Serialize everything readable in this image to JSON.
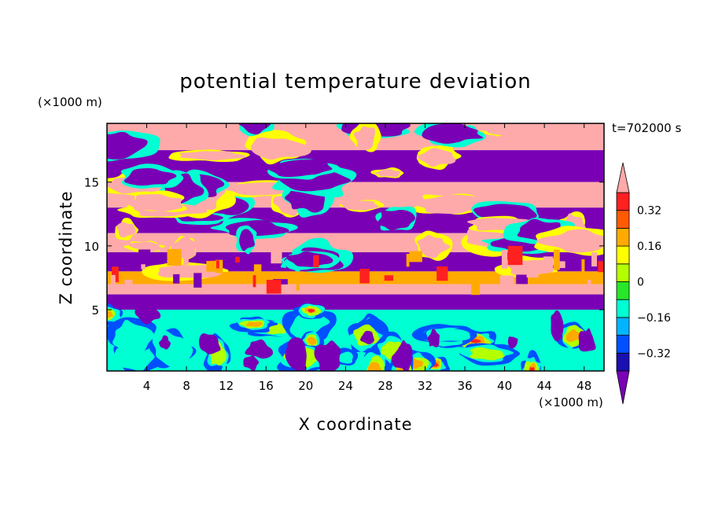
{
  "chart_data": {
    "type": "heatmap",
    "title": "potential temperature deviation",
    "xlabel": "X coordinate",
    "ylabel": "Z coordinate",
    "x_unit": "(×1000 m)",
    "y_unit": "(×1000 m)",
    "time_label": "t=702000 s",
    "xlim": [
      0,
      50
    ],
    "ylim": [
      0.2,
      19.6
    ],
    "x_ticks": [
      "4",
      "8",
      "12",
      "16",
      "20",
      "24",
      "28",
      "32",
      "36",
      "40",
      "44",
      "48"
    ],
    "y_ticks": [
      "5",
      "10",
      "15"
    ],
    "x_tick_values": [
      4,
      8,
      12,
      16,
      20,
      24,
      28,
      32,
      36,
      40,
      44,
      48
    ],
    "y_tick_values": [
      5,
      10,
      15
    ],
    "colorbar": {
      "levels": [
        -0.48,
        -0.4,
        -0.32,
        -0.24,
        -0.16,
        -0.08,
        0,
        0.08,
        0.16,
        0.24,
        0.32,
        0.4
      ],
      "colors": [
        "#7a00b5",
        "#1a0fb0",
        "#0050ff",
        "#00b4ff",
        "#00ffd2",
        "#28e628",
        "#b4ff00",
        "#ffff00",
        "#ffaa00",
        "#ff5a00",
        "#ff2020",
        "#ffaaaa"
      ],
      "tick_labels": [
        "0.32",
        "0.16",
        "0",
        "−0.16",
        "−0.32"
      ],
      "tick_values": [
        0.32,
        0.16,
        0,
        -0.16,
        -0.32
      ]
    },
    "bands": [
      {
        "z": [
          17.5,
          19.6
        ],
        "value": 0.45
      },
      {
        "z": [
          15.0,
          17.5
        ],
        "value": -0.45
      },
      {
        "z": [
          13.0,
          15.0
        ],
        "value": 0.45
      },
      {
        "z": [
          11.0,
          13.0
        ],
        "value": -0.45
      },
      {
        "z": [
          9.5,
          11.0
        ],
        "value": 0.45
      },
      {
        "z": [
          8.0,
          9.5
        ],
        "value": -0.45
      },
      {
        "z": [
          7.0,
          8.0
        ],
        "value": 0.2
      },
      {
        "z": [
          6.2,
          7.0
        ],
        "value": 0.4
      },
      {
        "z": [
          5.0,
          6.2
        ],
        "value": -0.45
      },
      {
        "z": [
          0.2,
          5.0
        ],
        "value": -0.1
      }
    ]
  }
}
